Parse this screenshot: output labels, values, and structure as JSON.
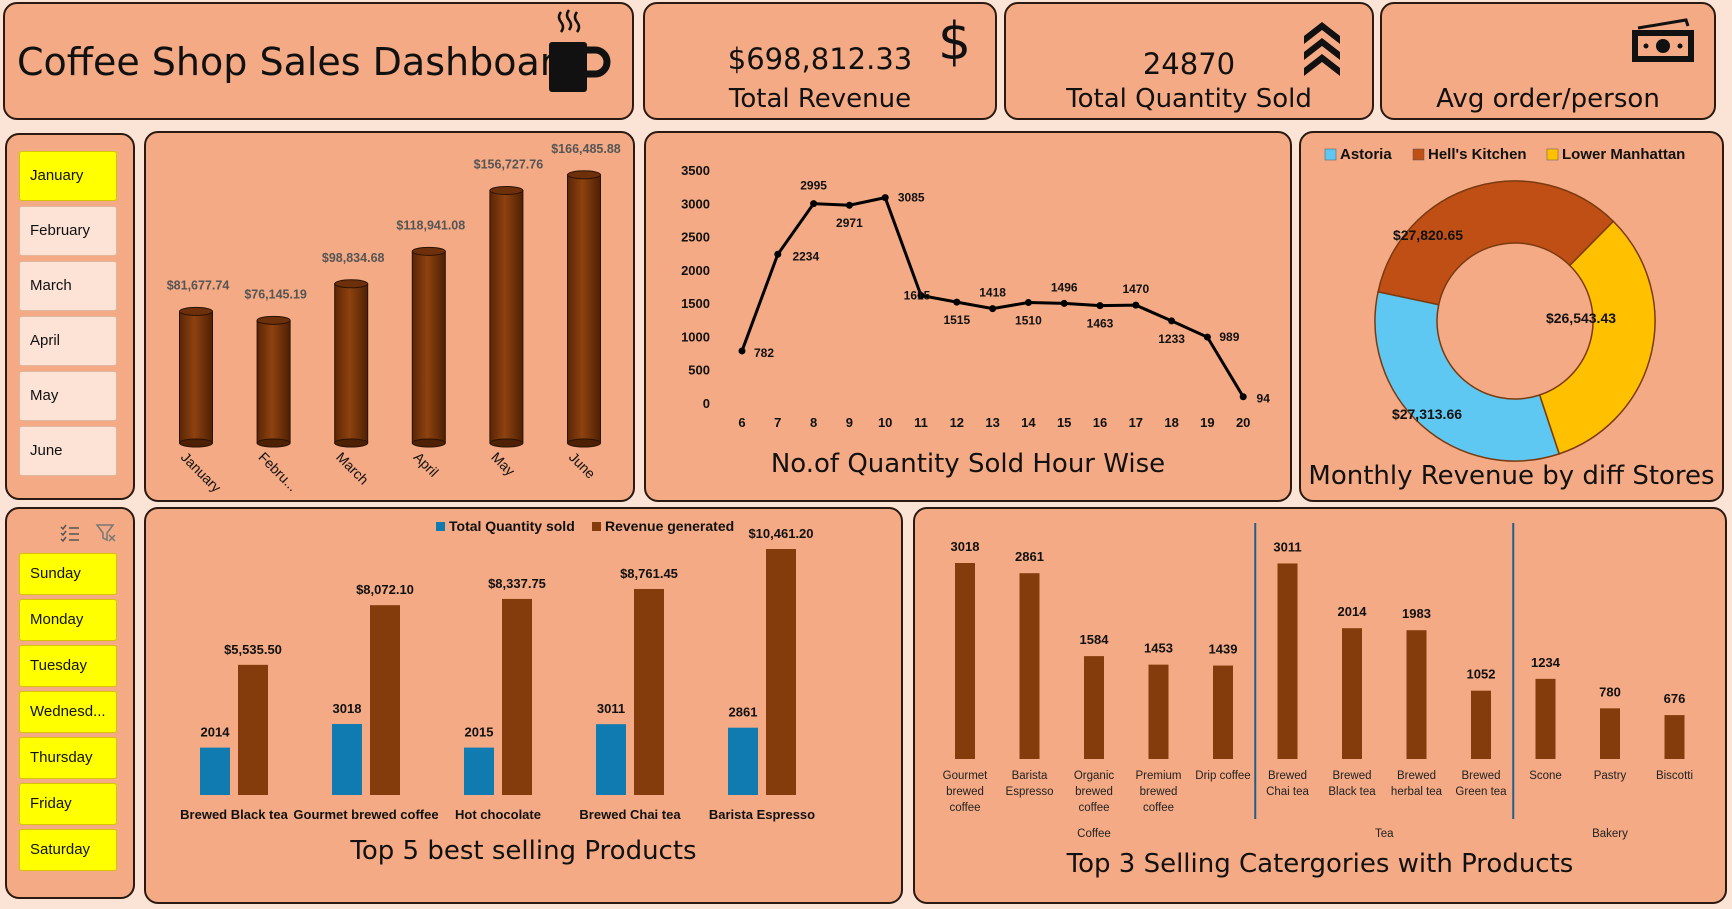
{
  "header": {
    "title": "Coffee Shop Sales Dashboard",
    "icon": "coffee-cup-icon"
  },
  "kpis": [
    {
      "value": "$698,812.33",
      "label": "Total  Revenue",
      "icon": "dollar-icon"
    },
    {
      "value": "24870",
      "label": "Total Quantity Sold",
      "icon": "chevrons-up-icon"
    },
    {
      "value": "",
      "label": "Avg order/person",
      "icon": "money-bill-icon"
    }
  ],
  "month_slicer": {
    "items": [
      {
        "label": "January",
        "selected": true
      },
      {
        "label": "February",
        "selected": false
      },
      {
        "label": "March",
        "selected": false
      },
      {
        "label": "April",
        "selected": false
      },
      {
        "label": "May",
        "selected": false
      },
      {
        "label": "June",
        "selected": false
      }
    ]
  },
  "day_slicer": {
    "items": [
      "Sunday",
      "Monday",
      "Tuesday",
      "Wednesd...",
      "Thursday",
      "Friday",
      "Saturday"
    ]
  },
  "chart_data": [
    {
      "id": "monthly",
      "type": "bar",
      "categories": [
        "January",
        "Febru...",
        "March",
        "April",
        "May",
        "June"
      ],
      "values": [
        81677.74,
        76145.19,
        98834.68,
        118941.08,
        156727.76,
        166485.88
      ],
      "labels": [
        "$81,677.74",
        "$76,145.19",
        "$98,834.68",
        "$118,941.08",
        "$156,727.76",
        "$166,485.88"
      ],
      "ylim": [
        0,
        180000
      ],
      "color": "#843c0c"
    },
    {
      "id": "hourly",
      "type": "line",
      "title": "No.of Quantity Sold Hour Wise",
      "x": [
        6,
        7,
        8,
        9,
        10,
        11,
        12,
        13,
        14,
        15,
        16,
        17,
        18,
        19,
        20
      ],
      "y": [
        782,
        2234,
        2995,
        2971,
        3085,
        1615,
        1515,
        1418,
        1510,
        1496,
        1463,
        1470,
        1233,
        989,
        94
      ],
      "yticks": [
        0,
        500,
        1000,
        1500,
        2000,
        2500,
        3000,
        3500
      ],
      "ylim": [
        0,
        3500
      ]
    },
    {
      "id": "stores",
      "type": "pie",
      "title": "Monthly Revenue by diff Stores",
      "slices": [
        {
          "name": "Astoria",
          "value": 27313.66,
          "label": "$27,313.66",
          "color": "#5ec8f2"
        },
        {
          "name": "Hell's Kitchen",
          "value": 27820.65,
          "label": "$27,820.65",
          "color": "#c04f15"
        },
        {
          "name": "Lower Manhattan",
          "value": 26543.43,
          "label": "$26,543.43",
          "color": "#ffc000"
        }
      ]
    },
    {
      "id": "top5",
      "type": "bar",
      "title": "Top 5 best selling Products",
      "categories": [
        "Brewed Black tea",
        "Gourmet brewed coffee",
        "Hot chocolate",
        "Brewed Chai tea",
        "Barista Espresso"
      ],
      "series": [
        {
          "name": "Total Quantity sold",
          "values": [
            2014,
            3018,
            2015,
            3011,
            2861
          ],
          "labels": [
            "2014",
            "3018",
            "2015",
            "3011",
            "2861"
          ],
          "color": "#0f7bb0"
        },
        {
          "name": "Revenue generated",
          "values": [
            5535.5,
            8072.1,
            8337.75,
            8761.45,
            10461.2
          ],
          "labels": [
            "$5,535.50",
            "$8,072.10",
            "$8,337.75",
            "$8,761.45",
            "$10,461.20"
          ],
          "color": "#843c0c"
        }
      ]
    },
    {
      "id": "categories",
      "type": "bar",
      "title": "Top 3 Selling Catergories with Products",
      "groups": [
        {
          "name": "Coffee",
          "products": [
            {
              "label": [
                "Gourmet",
                "brewed",
                "coffee"
              ],
              "value": 3018
            },
            {
              "label": [
                "Barista",
                "Espresso"
              ],
              "value": 2861
            },
            {
              "label": [
                "Organic",
                "brewed",
                "coffee"
              ],
              "value": 1584
            },
            {
              "label": [
                "Premium",
                "brewed",
                "coffee"
              ],
              "value": 1453
            },
            {
              "label": [
                "Drip coffee"
              ],
              "value": 1439
            }
          ]
        },
        {
          "name": "Tea",
          "products": [
            {
              "label": [
                "Brewed",
                "Chai tea"
              ],
              "value": 3011
            },
            {
              "label": [
                "Brewed",
                "Black tea"
              ],
              "value": 2014
            },
            {
              "label": [
                "Brewed",
                "herbal tea"
              ],
              "value": 1983
            },
            {
              "label": [
                "Brewed",
                "Green tea"
              ],
              "value": 1052
            }
          ]
        },
        {
          "name": "Bakery",
          "products": [
            {
              "label": [
                "Scone"
              ],
              "value": 1234
            },
            {
              "label": [
                "Pastry"
              ],
              "value": 780
            },
            {
              "label": [
                "Biscotti"
              ],
              "value": 676
            }
          ]
        }
      ],
      "ylim": [
        0,
        3300
      ],
      "color": "#843c0c"
    }
  ]
}
